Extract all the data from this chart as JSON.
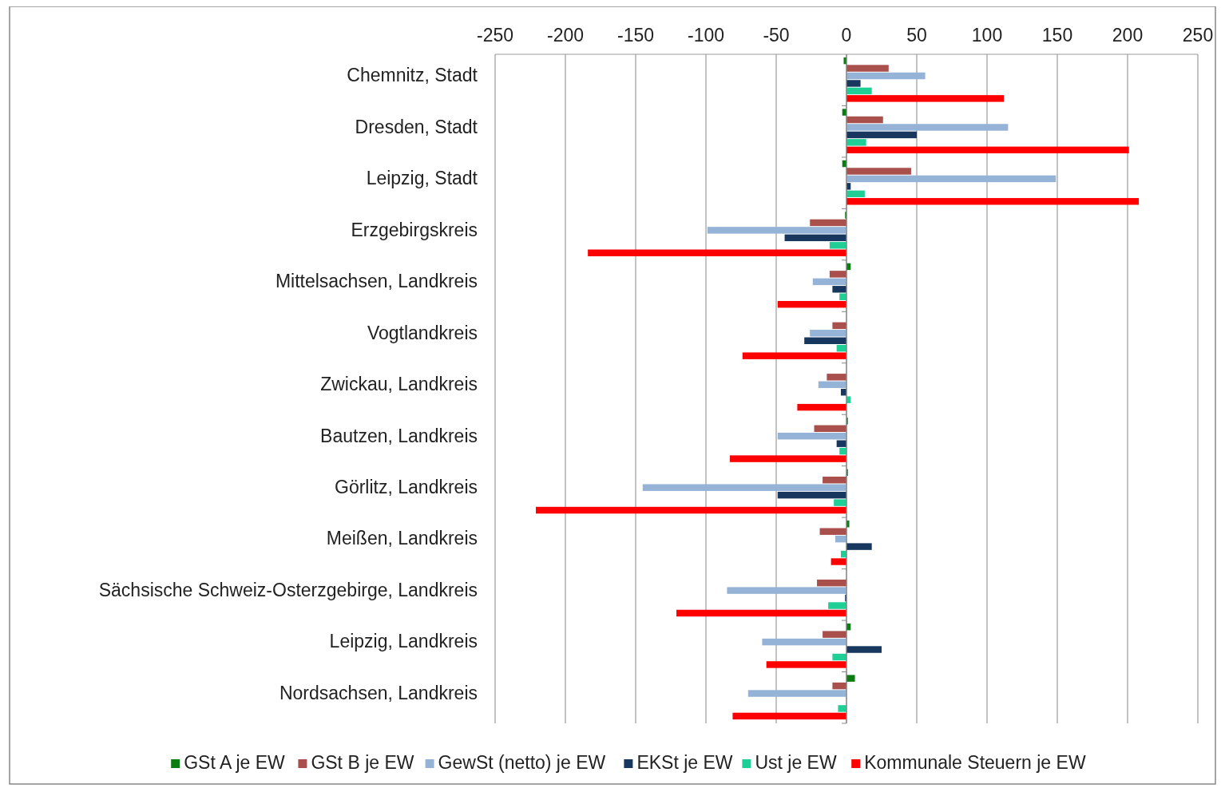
{
  "chart_data": {
    "type": "bar",
    "orientation": "horizontal",
    "categories": [
      "Chemnitz, Stadt",
      "Dresden, Stadt",
      "Leipzig, Stadt",
      "Erzgebirgskreis",
      "Mittelsachsen, Landkreis",
      "Vogtlandkreis",
      "Zwickau, Landkreis",
      "Bautzen, Landkreis",
      "Görlitz, Landkreis",
      "Meißen, Landkreis",
      "Sächsische Schweiz-Osterzgebirge, Landkreis",
      "Leipzig, Landkreis",
      "Nordsachsen, Landkreis"
    ],
    "series": [
      {
        "name": "GSt A je EW",
        "color": "#0a7d12",
        "values": [
          -2,
          -3,
          -3,
          -1,
          3,
          null,
          null,
          1,
          1,
          2,
          null,
          3,
          6
        ]
      },
      {
        "name": "GSt B je EW",
        "color": "#a9504d",
        "values": [
          30,
          26,
          46,
          -26,
          -12,
          -10,
          -14,
          -23,
          -17,
          -19,
          -21,
          -17,
          -10
        ]
      },
      {
        "name": "GewSt (netto) je EW",
        "color": "#95b3d7",
        "values": [
          56,
          115,
          149,
          -99,
          -24,
          -26,
          -20,
          -49,
          -145,
          -8,
          -85,
          -60,
          -70
        ]
      },
      {
        "name": "EKSt je EW",
        "color": "#17375e",
        "values": [
          10,
          50,
          3,
          -44,
          -10,
          -30,
          -4,
          -7,
          -49,
          18,
          -1,
          25,
          0
        ]
      },
      {
        "name": "Ust je EW",
        "color": "#1fcf96",
        "values": [
          18,
          14,
          13,
          -12,
          -5,
          -7,
          3,
          -5,
          -9,
          -4,
          -13,
          -10,
          -6
        ]
      },
      {
        "name": "Kommunale Steuern je EW",
        "color": "#ff0000",
        "values": [
          112,
          201,
          208,
          -184,
          -49,
          -74,
          -35,
          -83,
          -221,
          -11,
          -121,
          -57,
          -81
        ]
      }
    ],
    "xlim": [
      -250,
      250
    ],
    "xticks": [
      -250,
      -200,
      -150,
      -100,
      -50,
      0,
      50,
      100,
      150,
      200,
      250
    ],
    "grid": "x",
    "legend": "bottom"
  }
}
